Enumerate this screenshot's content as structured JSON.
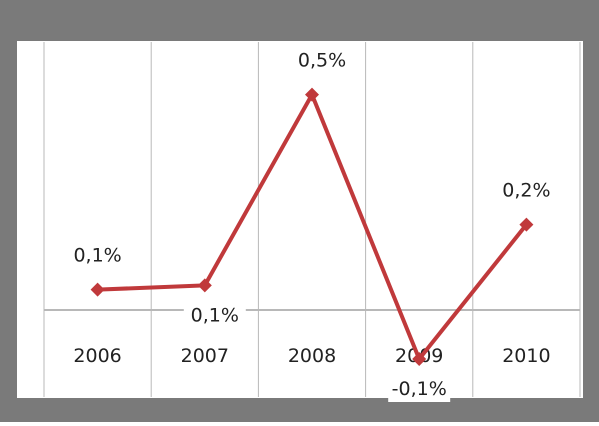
{
  "chart_data": {
    "type": "line",
    "categories": [
      "2006",
      "2007",
      "2008",
      "2009",
      "2010"
    ],
    "series": [
      {
        "values": [
          0.07,
          0.08,
          0.52,
          -0.09,
          0.22
        ],
        "data_labels": [
          "0,1%",
          "0,1%",
          "0,5%",
          "-0,1%",
          "0,2%"
        ]
      }
    ],
    "ylim": [
      -0.12,
      0.6
    ],
    "grid": "vertical",
    "legend": "none",
    "colors": {
      "line": "#c0393b",
      "frame": "#7a7a7a",
      "grid": "#b8b8b8",
      "text": "#222222",
      "label_box": "#ffffff"
    }
  }
}
